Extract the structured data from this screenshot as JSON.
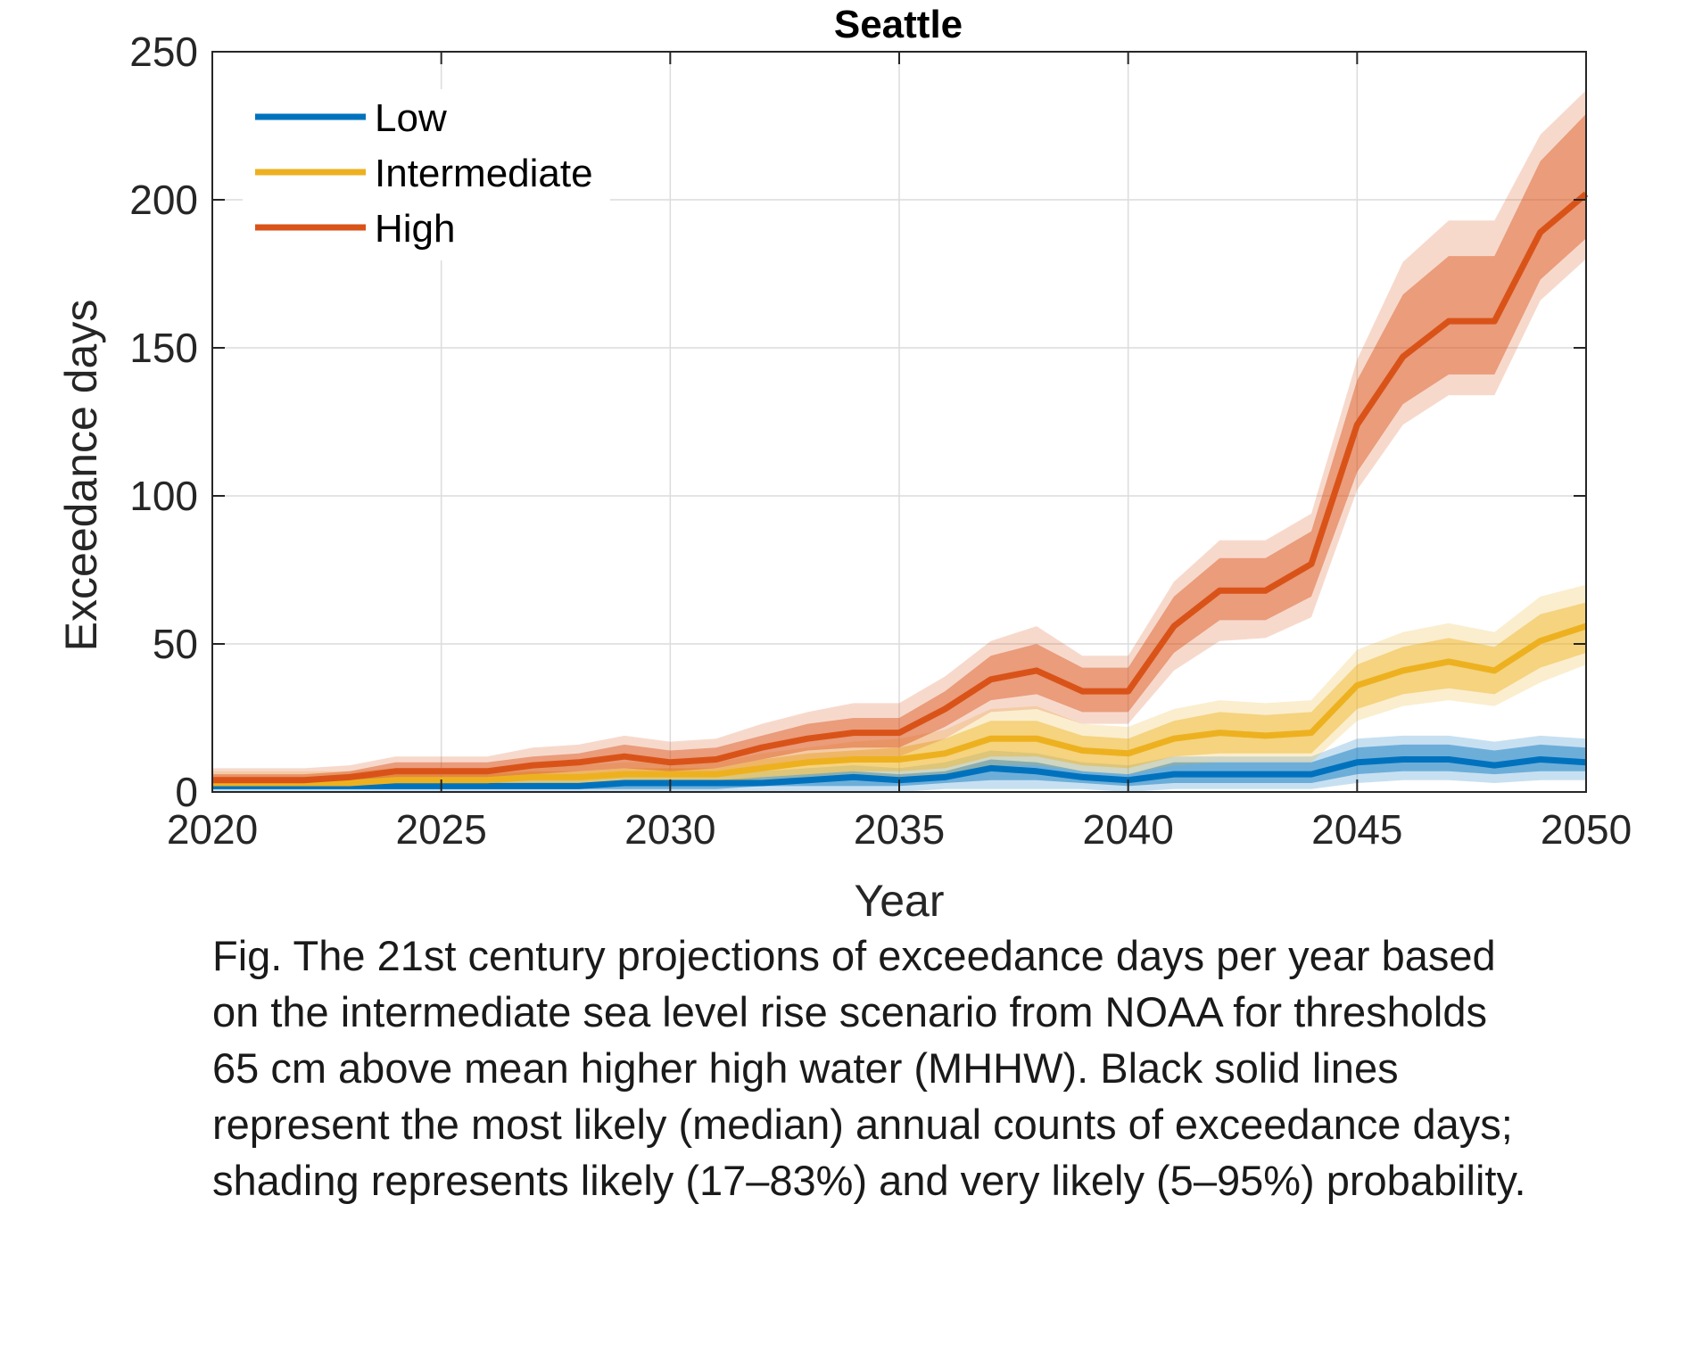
{
  "chart_data": {
    "type": "line",
    "title": "Seattle",
    "xlabel": "Year",
    "ylabel": "Exceedance days",
    "xlim": [
      2020,
      2050
    ],
    "ylim": [
      0,
      250
    ],
    "xticks": [
      2020,
      2025,
      2030,
      2035,
      2040,
      2045,
      2050
    ],
    "yticks": [
      0,
      50,
      100,
      150,
      200,
      250
    ],
    "grid": true,
    "legend_position": "top-left",
    "x": [
      2020,
      2021,
      2022,
      2023,
      2024,
      2025,
      2026,
      2027,
      2028,
      2029,
      2030,
      2031,
      2032,
      2033,
      2034,
      2035,
      2036,
      2037,
      2038,
      2039,
      2040,
      2041,
      2042,
      2043,
      2044,
      2045,
      2046,
      2047,
      2048,
      2049,
      2050
    ],
    "series": [
      {
        "name": "Low",
        "color": "#0072bd",
        "median": [
          2,
          2,
          2,
          2,
          2,
          2,
          2,
          2,
          2,
          3,
          3,
          3,
          3,
          4,
          5,
          4,
          5,
          8,
          7,
          5,
          4,
          6,
          6,
          6,
          6,
          10,
          11,
          11,
          9,
          11,
          10
        ],
        "likely_low": [
          1,
          1,
          1,
          1,
          1,
          1,
          1,
          1,
          1,
          1,
          1,
          1,
          2,
          2,
          2,
          2,
          3,
          4,
          4,
          3,
          2,
          3,
          3,
          3,
          3,
          6,
          7,
          7,
          6,
          7,
          7
        ],
        "likely_high": [
          3,
          3,
          3,
          3,
          3,
          3,
          3,
          3,
          3,
          4,
          4,
          4,
          5,
          6,
          7,
          6,
          7,
          11,
          10,
          7,
          6,
          10,
          10,
          10,
          10,
          15,
          16,
          16,
          14,
          16,
          15
        ],
        "very_likely_low": [
          0,
          0,
          0,
          0,
          0,
          0,
          0,
          0,
          0,
          0,
          0,
          0,
          0,
          0,
          0,
          0,
          1,
          1,
          1,
          1,
          0,
          1,
          1,
          1,
          1,
          3,
          4,
          4,
          3,
          4,
          4
        ],
        "very_likely_high": [
          5,
          5,
          5,
          5,
          5,
          5,
          5,
          5,
          5,
          6,
          6,
          6,
          7,
          8,
          9,
          8,
          10,
          14,
          13,
          10,
          9,
          12,
          12,
          12,
          12,
          18,
          19,
          19,
          17,
          19,
          18
        ]
      },
      {
        "name": "Intermediate",
        "color": "#edb120",
        "median": [
          3,
          3,
          3,
          3,
          4,
          4,
          4,
          5,
          5,
          6,
          6,
          6,
          8,
          10,
          11,
          11,
          13,
          18,
          18,
          14,
          13,
          18,
          20,
          19,
          20,
          36,
          41,
          44,
          41,
          51,
          56
        ],
        "likely_low": [
          2,
          2,
          2,
          2,
          2,
          2,
          2,
          3,
          3,
          3,
          3,
          3,
          5,
          6,
          7,
          7,
          8,
          12,
          12,
          9,
          8,
          12,
          13,
          13,
          13,
          28,
          33,
          35,
          33,
          42,
          47
        ],
        "likely_high": [
          5,
          5,
          5,
          5,
          6,
          6,
          6,
          7,
          7,
          8,
          8,
          8,
          11,
          13,
          14,
          15,
          18,
          24,
          24,
          19,
          18,
          24,
          27,
          26,
          27,
          43,
          49,
          52,
          49,
          60,
          64
        ],
        "very_likely_low": [
          1,
          1,
          1,
          1,
          1,
          1,
          1,
          2,
          2,
          2,
          2,
          2,
          3,
          4,
          5,
          5,
          6,
          9,
          9,
          7,
          6,
          9,
          10,
          10,
          10,
          24,
          29,
          31,
          29,
          37,
          43
        ],
        "very_likely_high": [
          7,
          7,
          7,
          7,
          8,
          8,
          8,
          9,
          9,
          10,
          10,
          10,
          13,
          15,
          17,
          18,
          21,
          28,
          29,
          23,
          22,
          28,
          31,
          30,
          31,
          48,
          54,
          57,
          54,
          66,
          70
        ]
      },
      {
        "name": "High",
        "color": "#d95319",
        "median": [
          4,
          4,
          4,
          5,
          7,
          7,
          7,
          9,
          10,
          12,
          10,
          11,
          15,
          18,
          20,
          20,
          28,
          38,
          41,
          34,
          34,
          56,
          68,
          68,
          77,
          124,
          147,
          159,
          159,
          189,
          202
        ],
        "likely_low": [
          2,
          2,
          2,
          3,
          5,
          5,
          5,
          6,
          7,
          8,
          7,
          8,
          11,
          14,
          15,
          15,
          22,
          31,
          33,
          27,
          27,
          47,
          58,
          58,
          66,
          108,
          131,
          141,
          141,
          173,
          187
        ],
        "likely_high": [
          6,
          6,
          6,
          7,
          10,
          10,
          10,
          12,
          13,
          16,
          14,
          15,
          19,
          23,
          25,
          25,
          34,
          46,
          50,
          42,
          42,
          66,
          79,
          79,
          88,
          139,
          168,
          181,
          181,
          213,
          229
        ],
        "very_likely_low": [
          1,
          1,
          1,
          2,
          3,
          3,
          3,
          4,
          5,
          6,
          5,
          6,
          8,
          11,
          12,
          12,
          18,
          27,
          28,
          23,
          23,
          41,
          51,
          52,
          59,
          102,
          124,
          134,
          134,
          166,
          180
        ],
        "very_likely_high": [
          8,
          8,
          8,
          9,
          12,
          12,
          12,
          15,
          16,
          19,
          17,
          18,
          23,
          27,
          30,
          30,
          39,
          51,
          56,
          46,
          46,
          71,
          85,
          85,
          94,
          146,
          179,
          193,
          193,
          222,
          237
        ]
      }
    ]
  },
  "caption": {
    "lines": [
      "Fig. The 21st century projections of exceedance days per year based",
      "on the intermediate sea level rise scenario from NOAA for thresholds",
      "65 cm above mean higher high water (MHHW). Black solid lines",
      "represent the most likely (median) annual counts of exceedance days;",
      "shading represents likely (17–83%) and very likely (5–95%) probability."
    ]
  }
}
